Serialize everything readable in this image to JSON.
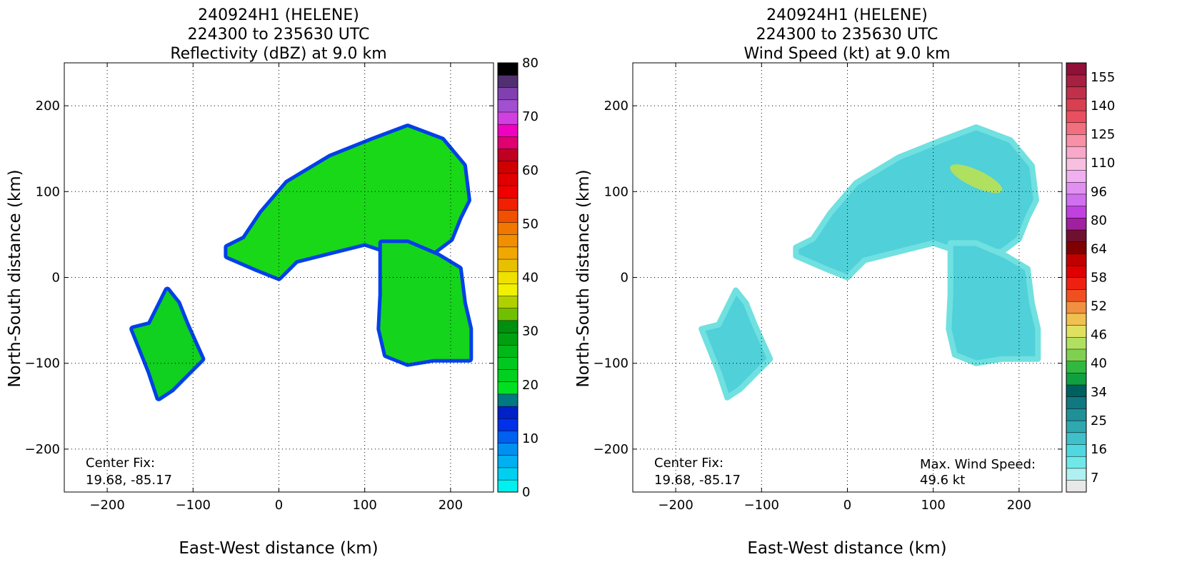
{
  "chart_data": [
    {
      "type": "heatmap",
      "title_lines": [
        "240924H1 (HELENE)",
        "224300 to 235630 UTC",
        "Reflectivity (dBZ) at 9.0 km"
      ],
      "xlabel": "East-West distance (km)",
      "ylabel": "North-South distance (km)",
      "xlim": [
        -250,
        250
      ],
      "ylim": [
        -250,
        250
      ],
      "xticks": [
        -200,
        -100,
        0,
        100,
        200
      ],
      "yticks": [
        -200,
        -100,
        0,
        100,
        200
      ],
      "grid": true,
      "colorbar": {
        "min": 0,
        "max": 80,
        "ticks": [
          0,
          10,
          20,
          30,
          40,
          50,
          60,
          70,
          80
        ],
        "colors": [
          "#00f0f0",
          "#00d0f0",
          "#00b0f0",
          "#0090f0",
          "#0060f0",
          "#0030e8",
          "#0020c8",
          "#007a80",
          "#00e020",
          "#00d020",
          "#00c820",
          "#00b818",
          "#00a010",
          "#009010",
          "#70c000",
          "#b0d000",
          "#f0f000",
          "#f0e000",
          "#e8c000",
          "#f0a800",
          "#f09000",
          "#f07800",
          "#f05000",
          "#f02000",
          "#f00000",
          "#e00000",
          "#d00000",
          "#c00020",
          "#e00070",
          "#f000c0",
          "#d040e0",
          "#a050d0",
          "#8040b0",
          "#503070",
          "#000000"
        ]
      },
      "series": [
        {
          "name": "",
          "values": [
            {
              "region": "southwest-cell",
              "polygon": [
                [
                  -150,
                  -55
                ],
                [
                  -140,
                  -35
                ],
                [
                  -130,
                  -15
                ],
                [
                  -118,
                  -30
                ],
                [
                  -108,
                  -55
                ],
                [
                  -90,
                  -95
                ],
                [
                  -110,
                  -115
                ],
                [
                  -125,
                  -130
                ],
                [
                  -140,
                  -140
                ],
                [
                  -150,
                  -110
                ],
                [
                  -160,
                  -85
                ],
                [
                  -170,
                  -60
                ]
              ]
            },
            {
              "region": "northern-band",
              "polygon": [
                [
                  -60,
                  35
                ],
                [
                  -40,
                  45
                ],
                [
                  -20,
                  75
                ],
                [
                  10,
                  110
                ],
                [
                  60,
                  140
                ],
                [
                  110,
                  160
                ],
                [
                  150,
                  175
                ],
                [
                  190,
                  160
                ],
                [
                  215,
                  130
                ],
                [
                  220,
                  90
                ],
                [
                  210,
                  70
                ],
                [
                  200,
                  45
                ],
                [
                  180,
                  30
                ],
                [
                  130,
                  30
                ],
                [
                  100,
                  40
                ],
                [
                  60,
                  30
                ],
                [
                  20,
                  20
                ],
                [
                  0,
                  0
                ],
                [
                  -25,
                  10
                ],
                [
                  -60,
                  25
                ]
              ]
            },
            {
              "region": "southeast-arm",
              "polygon": [
                [
                  120,
                  40
                ],
                [
                  150,
                  40
                ],
                [
                  185,
                  25
                ],
                [
                  210,
                  10
                ],
                [
                  215,
                  -30
                ],
                [
                  222,
                  -60
                ],
                [
                  222,
                  -95
                ],
                [
                  180,
                  -95
                ],
                [
                  150,
                  -100
                ],
                [
                  125,
                  -90
                ],
                [
                  118,
                  -60
                ],
                [
                  120,
                  -20
                ]
              ]
            }
          ]
        }
      ],
      "annotations": [
        {
          "label_line1": "Center Fix:",
          "label_line2": "19.68, -85.17"
        }
      ]
    },
    {
      "type": "heatmap",
      "title_lines": [
        "240924H1 (HELENE)",
        "224300 to 235630 UTC",
        "Wind Speed (kt) at 9.0 km"
      ],
      "xlabel": "East-West distance (km)",
      "ylabel": "North-South distance (km)",
      "xlim": [
        -250,
        250
      ],
      "ylim": [
        -250,
        250
      ],
      "xticks": [
        -200,
        -100,
        0,
        100,
        200
      ],
      "yticks": [
        -200,
        -100,
        0,
        100,
        200
      ],
      "grid": true,
      "colorbar": {
        "ticks": [
          7,
          16,
          25,
          34,
          40,
          46,
          52,
          58,
          64,
          80,
          96,
          110,
          125,
          140,
          155
        ],
        "colors": [
          "#e8e8e8",
          "#b0f0f0",
          "#70e8e8",
          "#50d8e0",
          "#40c0c8",
          "#30a8b0",
          "#209098",
          "#107880",
          "#006060",
          "#10a040",
          "#30b840",
          "#80d050",
          "#b0e060",
          "#e0e060",
          "#f0c050",
          "#f09040",
          "#f05020",
          "#f02010",
          "#e00000",
          "#c00000",
          "#800000",
          "#701030",
          "#a020a0",
          "#c040e0",
          "#d070f0",
          "#e090f0",
          "#f0b0f0",
          "#f8c0e0",
          "#f8a8c8",
          "#f890a8",
          "#f07080",
          "#e85060",
          "#d84050",
          "#c03048",
          "#a82040",
          "#901038"
        ]
      },
      "max_wind_label": "Max. Wind Speed:",
      "max_wind_value": "49.6 kt",
      "annotations": [
        {
          "label_line1": "Center Fix:",
          "label_line2": "19.68, -85.17"
        }
      ]
    }
  ]
}
